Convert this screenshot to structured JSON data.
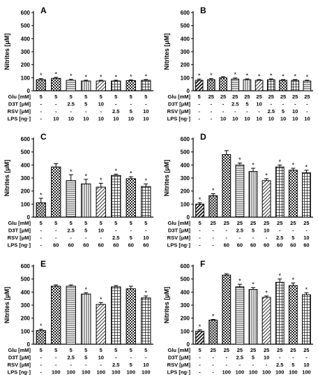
{
  "figure": {
    "ylabel": "Nitrites [μM]",
    "row_labels": {
      "glu": "Glu [mM]",
      "d3t": "D3T [μM]",
      "rsv": "RSV [μM]",
      "lps": "LPS [ng·]"
    }
  },
  "chart_data": [
    {
      "type": "bar",
      "panel": "A",
      "ylim": [
        0,
        600
      ],
      "yticks": [
        0,
        100,
        200,
        300,
        400,
        500,
        600
      ],
      "values": [
        85,
        95,
        80,
        75,
        75,
        75,
        78,
        80
      ],
      "errors": [
        8,
        8,
        8,
        6,
        6,
        6,
        6,
        6
      ],
      "significant": [
        true,
        true,
        true,
        true,
        true,
        true,
        true,
        true
      ],
      "patterns": [
        "crosshatch",
        "checker",
        "hlines",
        "vlines",
        "diag",
        "grid",
        "checker",
        "grid"
      ],
      "rows": {
        "glu": [
          "5",
          "5",
          "5",
          "5",
          "5",
          "5",
          "5",
          "5"
        ],
        "d3t": [
          "-",
          "-",
          "2.5",
          "5",
          "10",
          "-",
          "-",
          "-"
        ],
        "rsv": [
          "-",
          "-",
          "-",
          "-",
          "-",
          "2.5",
          "5",
          "10"
        ],
        "lps": [
          "-",
          "10",
          "10",
          "10",
          "10",
          "10",
          "10",
          "10"
        ]
      }
    },
    {
      "type": "bar",
      "panel": "B",
      "ylim": [
        0,
        600
      ],
      "yticks": [
        0,
        100,
        200,
        300,
        400,
        500,
        600
      ],
      "values": [
        80,
        85,
        100,
        90,
        85,
        80,
        85,
        80,
        80,
        75
      ],
      "errors": [
        10,
        8,
        8,
        8,
        6,
        6,
        6,
        6,
        6,
        6
      ],
      "significant": [
        true,
        true,
        false,
        true,
        true,
        true,
        true,
        true,
        true,
        true
      ],
      "patterns": [
        "diagbold",
        "crosshatch",
        "checker",
        "hlines",
        "vlines",
        "diag",
        "grid",
        "checker",
        "grid",
        "hlines"
      ],
      "rows": {
        "glu": [
          "5",
          "25",
          "25",
          "25",
          "25",
          "25",
          "25",
          "25",
          "25",
          "25"
        ],
        "d3t": [
          "-",
          "-",
          "-",
          "2.5",
          "5",
          "10",
          "-",
          "-",
          "-",
          "-"
        ],
        "rsv": [
          "-",
          "-",
          "-",
          "-",
          "-",
          "-",
          "2.5",
          "5",
          "10",
          "-"
        ],
        "lps": [
          "-",
          "-",
          "10",
          "10",
          "10",
          "10",
          "10",
          "10",
          "10",
          "10"
        ]
      }
    },
    {
      "type": "bar",
      "panel": "C",
      "ylim": [
        0,
        600
      ],
      "yticks": [
        0,
        100,
        200,
        300,
        400,
        500,
        600
      ],
      "values": [
        110,
        385,
        280,
        255,
        230,
        320,
        295,
        235
      ],
      "errors": [
        35,
        25,
        45,
        35,
        30,
        10,
        15,
        20
      ],
      "significant": [
        true,
        false,
        true,
        true,
        true,
        true,
        true,
        true
      ],
      "patterns": [
        "crosshatch",
        "checker",
        "hlines",
        "vlines",
        "diag",
        "grid",
        "checker",
        "grid"
      ],
      "rows": {
        "glu": [
          "5",
          "5",
          "5",
          "5",
          "5",
          "5",
          "5",
          "5"
        ],
        "d3t": [
          "-",
          "-",
          "2.5",
          "5",
          "10",
          "-",
          "-",
          "-"
        ],
        "rsv": [
          "-",
          "-",
          "-",
          "-",
          "-",
          "2.5",
          "5",
          "10"
        ],
        "lps": [
          "-",
          "60",
          "60",
          "60",
          "60",
          "60",
          "60",
          "60"
        ]
      }
    },
    {
      "type": "bar",
      "panel": "D",
      "ylim": [
        0,
        600
      ],
      "yticks": [
        0,
        100,
        200,
        300,
        400,
        500,
        600
      ],
      "values": [
        100,
        165,
        480,
        400,
        350,
        280,
        385,
        360,
        340
      ],
      "errors": [
        10,
        15,
        30,
        15,
        25,
        15,
        15,
        15,
        20
      ],
      "significant": [
        true,
        true,
        false,
        true,
        true,
        true,
        true,
        true,
        true
      ],
      "patterns": [
        "diagbold",
        "crosshatch",
        "checker",
        "hlines",
        "vlines",
        "diag",
        "grid",
        "checker",
        "grid"
      ],
      "rows": {
        "glu": [
          "5",
          "25",
          "25",
          "25",
          "25",
          "25",
          "25",
          "25",
          "25"
        ],
        "d3t": [
          "-",
          "-",
          "-",
          "2.5",
          "5",
          "10",
          "-",
          "-",
          "-"
        ],
        "rsv": [
          "-",
          "-",
          "-",
          "-",
          "-",
          "-",
          "2.5",
          "5",
          "10"
        ],
        "lps": [
          "-",
          "-",
          "60",
          "60",
          "60",
          "60",
          "60",
          "60",
          "60"
        ]
      }
    },
    {
      "type": "bar",
      "panel": "E",
      "ylim": [
        0,
        600
      ],
      "yticks": [
        0,
        100,
        200,
        300,
        400,
        500,
        600
      ],
      "values": [
        105,
        445,
        445,
        385,
        305,
        440,
        425,
        355
      ],
      "errors": [
        10,
        10,
        10,
        10,
        15,
        10,
        20,
        15
      ],
      "significant": [
        true,
        false,
        false,
        true,
        true,
        false,
        false,
        true
      ],
      "patterns": [
        "crosshatch",
        "checker",
        "hlines",
        "vlines",
        "diag",
        "grid",
        "checker",
        "grid"
      ],
      "rows": {
        "glu": [
          "5",
          "5",
          "5",
          "5",
          "5",
          "5",
          "5",
          "5"
        ],
        "d3t": [
          "-",
          "-",
          "2.5",
          "5",
          "10",
          "-",
          "-",
          "-"
        ],
        "rsv": [
          "-",
          "-",
          "-",
          "-",
          "-",
          "2.5",
          "5",
          "10"
        ],
        "lps": [
          "-",
          "100",
          "100",
          "100",
          "100",
          "100",
          "100",
          "100"
        ]
      }
    },
    {
      "type": "bar",
      "panel": "F",
      "ylim": [
        0,
        600
      ],
      "yticks": [
        0,
        100,
        200,
        300,
        400,
        500,
        600
      ],
      "values": [
        100,
        185,
        530,
        440,
        420,
        360,
        475,
        450,
        380
      ],
      "errors": [
        10,
        5,
        10,
        20,
        15,
        10,
        25,
        20,
        15
      ],
      "significant": [
        true,
        true,
        false,
        true,
        true,
        true,
        true,
        true,
        true
      ],
      "patterns": [
        "diagbold",
        "crosshatch",
        "checker",
        "hlines",
        "vlines",
        "diag",
        "grid",
        "checker",
        "grid"
      ],
      "rows": {
        "glu": [
          "5",
          "25",
          "25",
          "25",
          "25",
          "25",
          "25",
          "25",
          "25"
        ],
        "d3t": [
          "-",
          "-",
          "-",
          "2.5",
          "5",
          "10",
          "-",
          "-",
          "-"
        ],
        "rsv": [
          "-",
          "-",
          "-",
          "-",
          "-",
          "-",
          "2.5",
          "5",
          "10"
        ],
        "lps": [
          "-",
          "-",
          "100",
          "100",
          "100",
          "100",
          "100",
          "100",
          "100"
        ]
      }
    }
  ]
}
